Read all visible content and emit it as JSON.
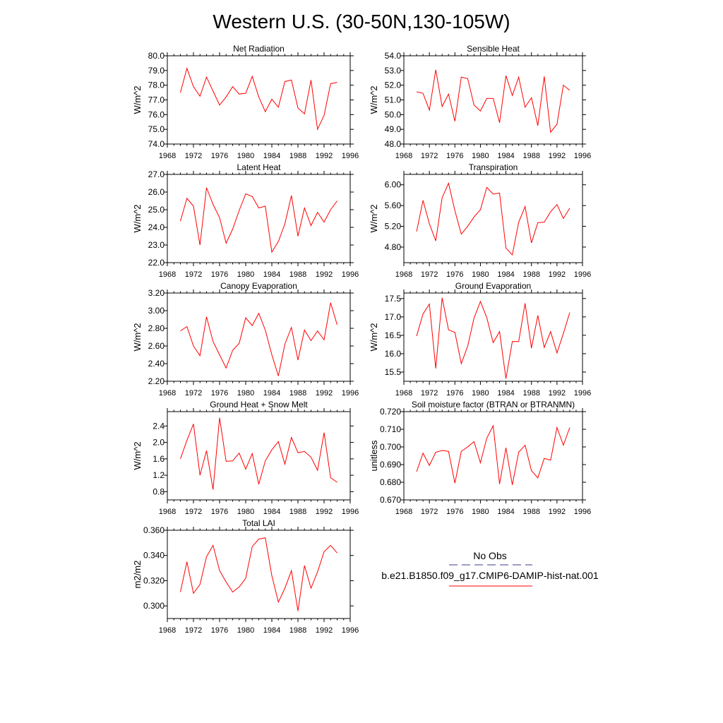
{
  "figure": {
    "title": "Western U.S. (30-50N,130-105W)"
  },
  "legend": {
    "obs_label": "No Obs",
    "model_label": "b.e21.B1850.f09_g17.CMIP6-DAMIP-hist-nat.001",
    "obs_color": "#3b3b8f",
    "model_color": "#ff0000"
  },
  "chart_data": [
    {
      "type": "line",
      "title": "Net Radiation",
      "ylabel": "W/m^2",
      "xlim": [
        1968,
        1996
      ],
      "ylim": [
        74.0,
        80.0
      ],
      "yticks": [
        "74.0",
        "75.0",
        "76.0",
        "77.0",
        "78.0",
        "79.0",
        "80.0"
      ],
      "xticks": [
        "1968",
        "1972",
        "1976",
        "1980",
        "1984",
        "1988",
        "1992",
        "1996"
      ],
      "x": [
        1970,
        1971,
        1972,
        1973,
        1974,
        1975,
        1976,
        1977,
        1978,
        1979,
        1980,
        1981,
        1982,
        1983,
        1984,
        1985,
        1986,
        1987,
        1988,
        1989,
        1990,
        1991,
        1992,
        1993,
        1994
      ],
      "series": [
        {
          "name": "b.e21.B1850.f09_g17.CMIP6-DAMIP-hist-nat.001",
          "color": "#ff0000",
          "values": [
            77.5,
            79.15,
            77.9,
            77.25,
            78.55,
            77.6,
            76.65,
            77.2,
            77.9,
            77.4,
            77.45,
            78.6,
            77.2,
            76.2,
            77.05,
            76.5,
            78.25,
            78.35,
            76.45,
            76.05,
            78.35,
            75.0,
            75.95,
            78.1,
            78.2
          ]
        }
      ]
    },
    {
      "type": "line",
      "title": "Sensible Heat",
      "ylabel": "W/m^2",
      "xlim": [
        1968,
        1996
      ],
      "ylim": [
        48.0,
        54.0
      ],
      "yticks": [
        "48.0",
        "49.0",
        "50.0",
        "51.0",
        "52.0",
        "53.0",
        "54.0"
      ],
      "xticks": [
        "1968",
        "1972",
        "1976",
        "1980",
        "1984",
        "1988",
        "1992",
        "1996"
      ],
      "x": [
        1970,
        1971,
        1972,
        1973,
        1974,
        1975,
        1976,
        1977,
        1978,
        1979,
        1980,
        1981,
        1982,
        1983,
        1984,
        1985,
        1986,
        1987,
        1988,
        1989,
        1990,
        1991,
        1992,
        1993,
        1994
      ],
      "series": [
        {
          "name": "b.e21.B1850.f09_g17.CMIP6-DAMIP-hist-nat.001",
          "color": "#ff0000",
          "values": [
            51.55,
            51.45,
            50.3,
            53.05,
            50.55,
            51.4,
            49.55,
            52.55,
            52.45,
            50.65,
            50.25,
            51.1,
            51.1,
            49.45,
            52.65,
            51.3,
            52.55,
            50.5,
            51.15,
            49.25,
            52.6,
            48.8,
            49.35,
            52.0,
            51.65
          ]
        }
      ]
    },
    {
      "type": "line",
      "title": "Latent Heat",
      "ylabel": "W/m^2",
      "xlim": [
        1968,
        1996
      ],
      "ylim": [
        22.0,
        27.0
      ],
      "yticks": [
        "22.0",
        "23.0",
        "24.0",
        "25.0",
        "26.0",
        "27.0"
      ],
      "xticks": [
        "1968",
        "1972",
        "1976",
        "1980",
        "1984",
        "1988",
        "1992",
        "1996"
      ],
      "x": [
        1970,
        1971,
        1972,
        1973,
        1974,
        1975,
        1976,
        1977,
        1978,
        1979,
        1980,
        1981,
        1982,
        1983,
        1984,
        1985,
        1986,
        1987,
        1988,
        1989,
        1990,
        1991,
        1992,
        1993,
        1994
      ],
      "series": [
        {
          "name": "b.e21.B1850.f09_g17.CMIP6-DAMIP-hist-nat.001",
          "color": "#ff0000",
          "values": [
            24.35,
            25.65,
            25.2,
            23.0,
            26.25,
            25.3,
            24.55,
            23.1,
            23.9,
            24.95,
            25.9,
            25.75,
            25.1,
            25.2,
            22.6,
            23.2,
            24.2,
            25.8,
            23.5,
            25.1,
            24.1,
            24.85,
            24.3,
            25.0,
            25.5
          ]
        }
      ]
    },
    {
      "type": "line",
      "title": "Transpiration",
      "ylabel": "W/m^2",
      "xlim": [
        1968,
        1996
      ],
      "ylim": [
        4.5,
        6.2
      ],
      "yticks": [
        "4.80",
        "5.20",
        "5.60",
        "6.00"
      ],
      "ytickValues": [
        4.8,
        5.2,
        5.6,
        6.0
      ],
      "xticks": [
        "1968",
        "1972",
        "1976",
        "1980",
        "1984",
        "1988",
        "1992",
        "1996"
      ],
      "x": [
        1970,
        1971,
        1972,
        1973,
        1974,
        1975,
        1976,
        1977,
        1978,
        1979,
        1980,
        1981,
        1982,
        1983,
        1984,
        1985,
        1986,
        1987,
        1988,
        1989,
        1990,
        1991,
        1992,
        1993,
        1994
      ],
      "series": [
        {
          "name": "b.e21.B1850.f09_g17.CMIP6-DAMIP-hist-nat.001",
          "color": "#ff0000",
          "values": [
            5.1,
            5.7,
            5.25,
            4.92,
            5.75,
            6.03,
            5.5,
            5.05,
            5.2,
            5.38,
            5.52,
            5.95,
            5.82,
            5.84,
            4.78,
            4.65,
            5.28,
            5.58,
            4.88,
            5.27,
            5.28,
            5.48,
            5.62,
            5.35,
            5.55
          ]
        }
      ]
    },
    {
      "type": "line",
      "title": "Canopy Evaporation",
      "ylabel": "W/m^2",
      "xlim": [
        1968,
        1996
      ],
      "ylim": [
        2.2,
        3.2
      ],
      "yticks": [
        "2.20",
        "2.40",
        "2.60",
        "2.80",
        "3.00",
        "3.20"
      ],
      "xticks": [
        "1968",
        "1972",
        "1976",
        "1980",
        "1984",
        "1988",
        "1992",
        "1996"
      ],
      "x": [
        1970,
        1971,
        1972,
        1973,
        1974,
        1975,
        1976,
        1977,
        1978,
        1979,
        1980,
        1981,
        1982,
        1983,
        1984,
        1985,
        1986,
        1987,
        1988,
        1989,
        1990,
        1991,
        1992,
        1993,
        1994
      ],
      "series": [
        {
          "name": "b.e21.B1850.f09_g17.CMIP6-DAMIP-hist-nat.001",
          "color": "#ff0000",
          "values": [
            2.77,
            2.82,
            2.6,
            2.49,
            2.93,
            2.65,
            2.5,
            2.35,
            2.55,
            2.63,
            2.92,
            2.83,
            2.97,
            2.78,
            2.5,
            2.26,
            2.62,
            2.81,
            2.44,
            2.78,
            2.66,
            2.77,
            2.67,
            3.09,
            2.84
          ]
        }
      ]
    },
    {
      "type": "line",
      "title": "Ground Evaporation",
      "ylabel": "W/m^2",
      "xlim": [
        1968,
        1996
      ],
      "ylim": [
        15.25,
        17.65
      ],
      "yticks": [
        "15.5",
        "16.0",
        "16.5",
        "17.0",
        "17.5"
      ],
      "ytickValues": [
        15.5,
        16.0,
        16.5,
        17.0,
        17.5
      ],
      "xticks": [
        "1968",
        "1972",
        "1976",
        "1980",
        "1984",
        "1988",
        "1992",
        "1996"
      ],
      "x": [
        1970,
        1971,
        1972,
        1973,
        1974,
        1975,
        1976,
        1977,
        1978,
        1979,
        1980,
        1981,
        1982,
        1983,
        1984,
        1985,
        1986,
        1987,
        1988,
        1989,
        1990,
        1991,
        1992,
        1993,
        1994
      ],
      "series": [
        {
          "name": "b.e21.B1850.f09_g17.CMIP6-DAMIP-hist-nat.001",
          "color": "#ff0000",
          "values": [
            16.48,
            17.08,
            17.35,
            15.6,
            17.52,
            16.65,
            16.58,
            15.73,
            16.2,
            16.97,
            17.42,
            16.98,
            16.3,
            16.6,
            15.32,
            16.33,
            16.33,
            17.37,
            16.15,
            17.04,
            16.17,
            16.6,
            16.02,
            16.55,
            17.12
          ]
        }
      ]
    },
    {
      "type": "line",
      "title": "Ground Heat + Snow Melt",
      "ylabel": "W/m^2",
      "xlim": [
        1968,
        1996
      ],
      "ylim": [
        0.6,
        2.75
      ],
      "yticks": [
        "0.8",
        "1.2",
        "1.6",
        "2.0",
        "2.4"
      ],
      "ytickValues": [
        0.8,
        1.2,
        1.6,
        2.0,
        2.4
      ],
      "xticks": [
        "1968",
        "1972",
        "1976",
        "1980",
        "1984",
        "1988",
        "1992",
        "1996"
      ],
      "x": [
        1970,
        1971,
        1972,
        1973,
        1974,
        1975,
        1976,
        1977,
        1978,
        1979,
        1980,
        1981,
        1982,
        1983,
        1984,
        1985,
        1986,
        1987,
        1988,
        1989,
        1990,
        1991,
        1992,
        1993,
        1994
      ],
      "series": [
        {
          "name": "b.e21.B1850.f09_g17.CMIP6-DAMIP-hist-nat.001",
          "color": "#ff0000",
          "values": [
            1.6,
            2.05,
            2.45,
            1.2,
            1.8,
            0.85,
            2.6,
            1.54,
            1.55,
            1.74,
            1.35,
            1.73,
            0.98,
            1.55,
            1.82,
            2.02,
            1.47,
            2.12,
            1.75,
            1.78,
            1.64,
            1.32,
            2.24,
            1.14,
            1.03
          ]
        }
      ]
    },
    {
      "type": "line",
      "title": "Soil moisture factor (BTRAN or BTRANMN)",
      "ylabel": "unitless",
      "xlim": [
        1968,
        1996
      ],
      "ylim": [
        0.67,
        0.72
      ],
      "yticks": [
        "0.670",
        "0.680",
        "0.690",
        "0.700",
        "0.710",
        "0.720"
      ],
      "xticks": [
        "1968",
        "1972",
        "1976",
        "1980",
        "1984",
        "1988",
        "1992",
        "1996"
      ],
      "x": [
        1970,
        1971,
        1972,
        1973,
        1974,
        1975,
        1976,
        1977,
        1978,
        1979,
        1980,
        1981,
        1982,
        1983,
        1984,
        1985,
        1986,
        1987,
        1988,
        1989,
        1990,
        1991,
        1992,
        1993,
        1994
      ],
      "series": [
        {
          "name": "b.e21.B1850.f09_g17.CMIP6-DAMIP-hist-nat.001",
          "color": "#ff0000",
          "values": [
            0.686,
            0.6965,
            0.6895,
            0.697,
            0.698,
            0.6975,
            0.6795,
            0.6975,
            0.7,
            0.703,
            0.691,
            0.705,
            0.712,
            0.679,
            0.6995,
            0.6785,
            0.697,
            0.701,
            0.6865,
            0.6825,
            0.6935,
            0.6925,
            0.711,
            0.701,
            0.711
          ]
        }
      ]
    },
    {
      "type": "line",
      "title": "Total LAI",
      "ylabel": "m2/m2",
      "xlim": [
        1968,
        1996
      ],
      "ylim": [
        0.29,
        0.36
      ],
      "yticks": [
        "0.300",
        "0.320",
        "0.340",
        "0.360"
      ],
      "ytickValues": [
        0.3,
        0.32,
        0.34,
        0.36
      ],
      "xticks": [
        "1968",
        "1972",
        "1976",
        "1980",
        "1984",
        "1988",
        "1992",
        "1996"
      ],
      "x": [
        1970,
        1971,
        1972,
        1973,
        1974,
        1975,
        1976,
        1977,
        1978,
        1979,
        1980,
        1981,
        1982,
        1983,
        1984,
        1985,
        1986,
        1987,
        1988,
        1989,
        1990,
        1991,
        1992,
        1993,
        1994
      ],
      "series": [
        {
          "name": "b.e21.B1850.f09_g17.CMIP6-DAMIP-hist-nat.001",
          "color": "#ff0000",
          "values": [
            0.311,
            0.335,
            0.31,
            0.317,
            0.339,
            0.348,
            0.328,
            0.319,
            0.311,
            0.315,
            0.322,
            0.347,
            0.353,
            0.354,
            0.324,
            0.303,
            0.314,
            0.328,
            0.296,
            0.332,
            0.314,
            0.327,
            0.343,
            0.348,
            0.342
          ]
        }
      ]
    }
  ]
}
